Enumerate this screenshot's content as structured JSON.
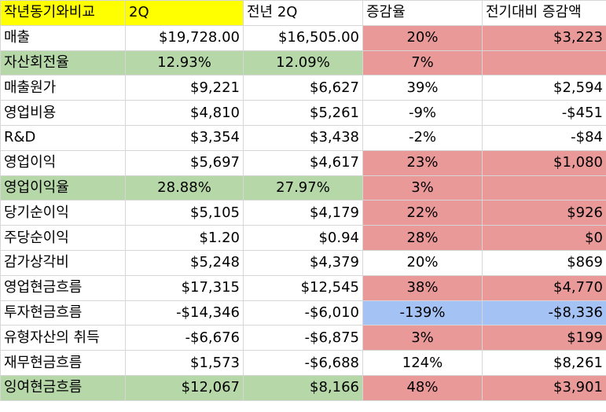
{
  "colors": {
    "header_yellow": "#ffff00",
    "green": "#b6d7a8",
    "red": "#ea9999",
    "blue": "#a4c2f4"
  },
  "header": [
    "작년동기와비교",
    "2Q",
    "전년 2Q",
    "증감율",
    "전기대비 증감액"
  ],
  "rows": [
    {
      "label": "매출",
      "cur": "$19,728.00",
      "prev": "$16,505.00",
      "rate": "20%",
      "diff": "$3,223"
    },
    {
      "label": "자산회전율",
      "cur": "12.93%",
      "prev": "12.09%",
      "rate": "7%",
      "diff": ""
    },
    {
      "label": "매출원가",
      "cur": "$9,221",
      "prev": "$6,627",
      "rate": "39%",
      "diff": "$2,594"
    },
    {
      "label": "영업비용",
      "cur": "$4,810",
      "prev": "$5,261",
      "rate": "-9%",
      "diff": "-$451"
    },
    {
      "label": "R&D",
      "cur": "$3,354",
      "prev": "$3,438",
      "rate": "-2%",
      "diff": "-$84"
    },
    {
      "label": "영업이익",
      "cur": "$5,697",
      "prev": "$4,617",
      "rate": "23%",
      "diff": "$1,080"
    },
    {
      "label": "영업이익율",
      "cur": "28.88%",
      "prev": "27.97%",
      "rate": "3%",
      "diff": ""
    },
    {
      "label": "당기순이익",
      "cur": "$5,105",
      "prev": "$4,179",
      "rate": "22%",
      "diff": "$926"
    },
    {
      "label": "주당순이익",
      "cur": "$1.20",
      "prev": "$0.94",
      "rate": "28%",
      "diff": "$0"
    },
    {
      "label": "감가상각비",
      "cur": "$5,248",
      "prev": "$4,379",
      "rate": "20%",
      "diff": "$869"
    },
    {
      "label": "영업현금흐름",
      "cur": "$17,315",
      "prev": "$12,545",
      "rate": "38%",
      "diff": "$4,770"
    },
    {
      "label": "투자현금흐름",
      "cur": "-$14,346",
      "prev": "-$6,010",
      "rate": "-139%",
      "diff": "-$8,336"
    },
    {
      "label": "유형자산의 취득",
      "cur": "-$6,676",
      "prev": "-$6,875",
      "rate": "3%",
      "diff": "$199"
    },
    {
      "label": "재무현금흐름",
      "cur": "$1,573",
      "prev": "-$6,688",
      "rate": "124%",
      "diff": "$8,261"
    },
    {
      "label": "잉여현금흐름",
      "cur": "$12,067",
      "prev": "$8,166",
      "rate": "48%",
      "diff": "$3,901"
    }
  ]
}
